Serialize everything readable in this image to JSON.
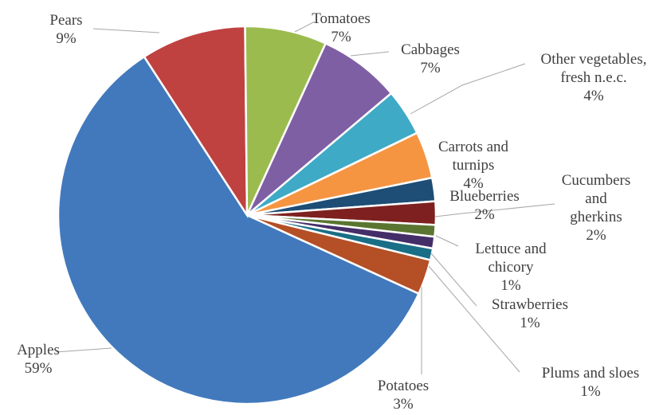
{
  "chart_data": {
    "type": "pie",
    "title": "",
    "legend": "none",
    "slices": [
      {
        "name": "Apples",
        "value": 59,
        "pct_label": "59%",
        "label_lines": [
          "Apples"
        ],
        "color": "#4279bd"
      },
      {
        "name": "Pears",
        "value": 9,
        "pct_label": "9%",
        "label_lines": [
          "Pears"
        ],
        "color": "#bf4240"
      },
      {
        "name": "Tomatoes",
        "value": 7,
        "pct_label": "7%",
        "label_lines": [
          "Tomatoes"
        ],
        "color": "#9cbb4f"
      },
      {
        "name": "Cabbages",
        "value": 7,
        "pct_label": "7%",
        "label_lines": [
          "Cabbages"
        ],
        "color": "#7f5fa4"
      },
      {
        "name": "Other vegetables, fresh n.e.c.",
        "value": 4,
        "pct_label": "4%",
        "label_lines": [
          "Other vegetables,",
          "fresh n.e.c."
        ],
        "color": "#3eaac6"
      },
      {
        "name": "Carrots and turnips",
        "value": 4,
        "pct_label": "4%",
        "label_lines": [
          "Carrots and",
          "turnips"
        ],
        "color": "#f59542"
      },
      {
        "name": "Blueberries",
        "value": 2,
        "pct_label": "2%",
        "label_lines": [
          "Blueberries"
        ],
        "color": "#1e4d76"
      },
      {
        "name": "Cucumbers and gherkins",
        "value": 2,
        "pct_label": "2%",
        "label_lines": [
          "Cucumbers",
          "and",
          "gherkins"
        ],
        "color": "#7e2020"
      },
      {
        "name": "Lettuce and chicory",
        "value": 1,
        "pct_label": "1%",
        "label_lines": [
          "Lettuce and",
          "chicory"
        ],
        "color": "#5a7530"
      },
      {
        "name": "Strawberries",
        "value": 1,
        "pct_label": "1%",
        "label_lines": [
          "Strawberries"
        ],
        "color": "#442e68"
      },
      {
        "name": "Plums and sloes",
        "value": 1,
        "pct_label": "1%",
        "label_lines": [
          "Plums and sloes"
        ],
        "color": "#1a6e86"
      },
      {
        "name": "Potatoes",
        "value": 3,
        "pct_label": "3%",
        "label_lines": [
          "Potatoes"
        ],
        "color": "#b44f26"
      }
    ]
  }
}
